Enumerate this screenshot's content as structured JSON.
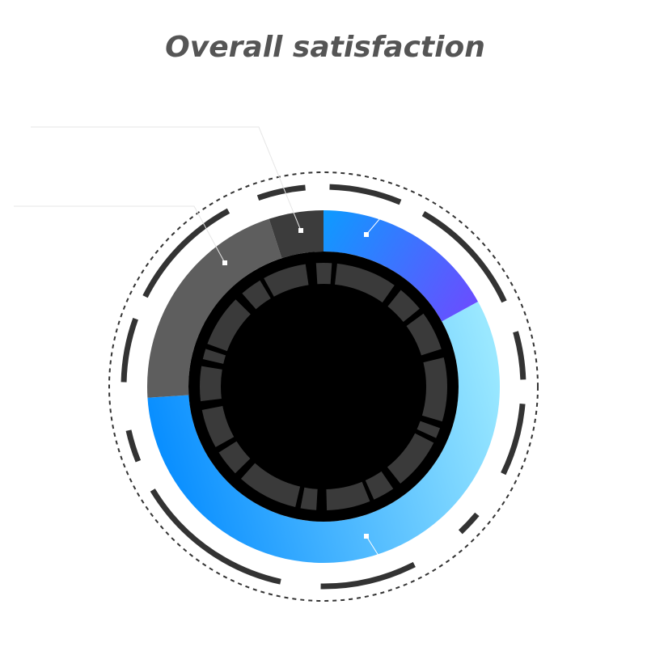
{
  "chart_data": {
    "type": "pie",
    "title": "Overall satisfaction",
    "values": [
      17,
      57,
      21,
      5
    ],
    "colors": [
      [
        "#0d9bff",
        "#6a4dff"
      ],
      [
        "#9ae8ff",
        "#0a8fff"
      ],
      "#5e5e5e",
      "#3c3c3c"
    ],
    "start_angle": 0,
    "direction": "clockwise",
    "donut": true
  }
}
